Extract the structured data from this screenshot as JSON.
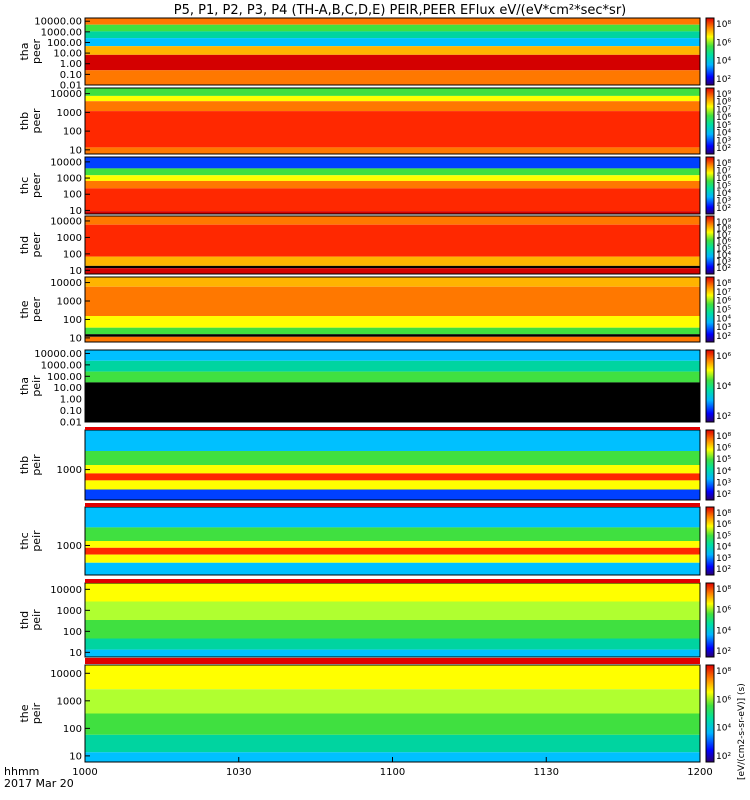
{
  "title": "P5, P1, P2, P3, P4 (TH-A,B,C,D,E) PEIR,PEER EFlux eV/(eV*cm²*sec*sr)",
  "chart_data": {
    "type": "heatmap",
    "title": "P5, P1, P2, P3, P4 (TH-A,B,C,D,E) PEIR,PEER EFlux eV/(eV*cm²*sec*sr)",
    "x_label": "hhmm",
    "date_label": "2017 Mar 20",
    "x_ticks": [
      "1000",
      "1030",
      "1100",
      "1130",
      "1200"
    ],
    "x_range": [
      "10:00",
      "12:00"
    ],
    "y_scale": "log",
    "colorbar_scale": "log",
    "colormap": "rainbow (blue→cyan→green→yellow→orange→red)",
    "colorbar_label": "[eV/(cm2-s-sr-eV)] (s)",
    "panels": [
      {
        "label": [
          "tha",
          "peer"
        ],
        "y_ticks": [
          "10000.00",
          "1000.00",
          "100.00",
          "10.00",
          "1.00",
          "0.10",
          "0.01"
        ],
        "y_range": [
          0.01,
          20000
        ],
        "cbar_ticks": [
          "10⁸",
          "10⁶",
          "10⁴",
          "10²"
        ]
      },
      {
        "label": [
          "thb",
          "peer"
        ],
        "y_ticks": [
          "10000",
          "1000",
          "100",
          "10"
        ],
        "y_range": [
          6,
          20000
        ],
        "cbar_ticks": [
          "10⁹",
          "10⁸",
          "10⁷",
          "10⁶",
          "10⁵",
          "10⁴",
          "10³",
          "10²"
        ]
      },
      {
        "label": [
          "thc",
          "peer"
        ],
        "y_ticks": [
          "10000",
          "1000",
          "100",
          "10"
        ],
        "y_range": [
          6,
          20000
        ],
        "cbar_ticks": [
          "10⁸",
          "10⁷",
          "10⁶",
          "10⁵",
          "10⁴",
          "10³",
          "10²"
        ]
      },
      {
        "label": [
          "thd",
          "peer"
        ],
        "y_ticks": [
          "10000",
          "1000",
          "100",
          "10"
        ],
        "y_range": [
          6,
          20000
        ],
        "cbar_ticks": [
          "10⁹",
          "10⁸",
          "10⁷",
          "10⁶",
          "10⁵",
          "10⁴",
          "10³",
          "10²"
        ]
      },
      {
        "label": [
          "the",
          "peer"
        ],
        "y_ticks": [
          "10000",
          "1000",
          "100",
          "10"
        ],
        "y_range": [
          6,
          20000
        ],
        "cbar_ticks": [
          "10⁸",
          "10⁷",
          "10⁶",
          "10⁵",
          "10⁴",
          "10³",
          "10²"
        ]
      },
      {
        "label": [
          "tha",
          "peir"
        ],
        "y_ticks": [
          "10000.00",
          "1000.00",
          "100.00",
          "10.00",
          "1.00",
          "0.10",
          "0.01"
        ],
        "y_range": [
          0.01,
          20000
        ],
        "cbar_ticks": [
          "10⁶",
          "10⁴",
          "10²"
        ]
      },
      {
        "label": [
          "thb",
          "peir"
        ],
        "y_ticks": [
          "1000"
        ],
        "y_range": [
          100,
          20000
        ],
        "cbar_ticks": [
          "10⁸",
          "10⁶",
          "10⁵",
          "10⁴",
          "10³",
          "10²"
        ]
      },
      {
        "label": [
          "thc",
          "peir"
        ],
        "y_ticks": [
          "1000"
        ],
        "y_range": [
          100,
          20000
        ],
        "cbar_ticks": [
          "10⁸",
          "10⁶",
          "10⁵",
          "10⁴",
          "10³",
          "10²"
        ]
      },
      {
        "label": [
          "thd",
          "peir"
        ],
        "y_ticks": [
          "10000",
          "1000",
          "100",
          "10"
        ],
        "y_range": [
          6,
          20000
        ],
        "cbar_ticks": [
          "10⁸",
          "10⁶",
          "10⁴",
          "10²"
        ]
      },
      {
        "label": [
          "the",
          "peir"
        ],
        "y_ticks": [
          "10000",
          "1000",
          "100",
          "10"
        ],
        "y_range": [
          6,
          20000
        ],
        "cbar_ticks": [
          "10⁸",
          "10⁶",
          "10⁴",
          "10²"
        ]
      }
    ]
  }
}
